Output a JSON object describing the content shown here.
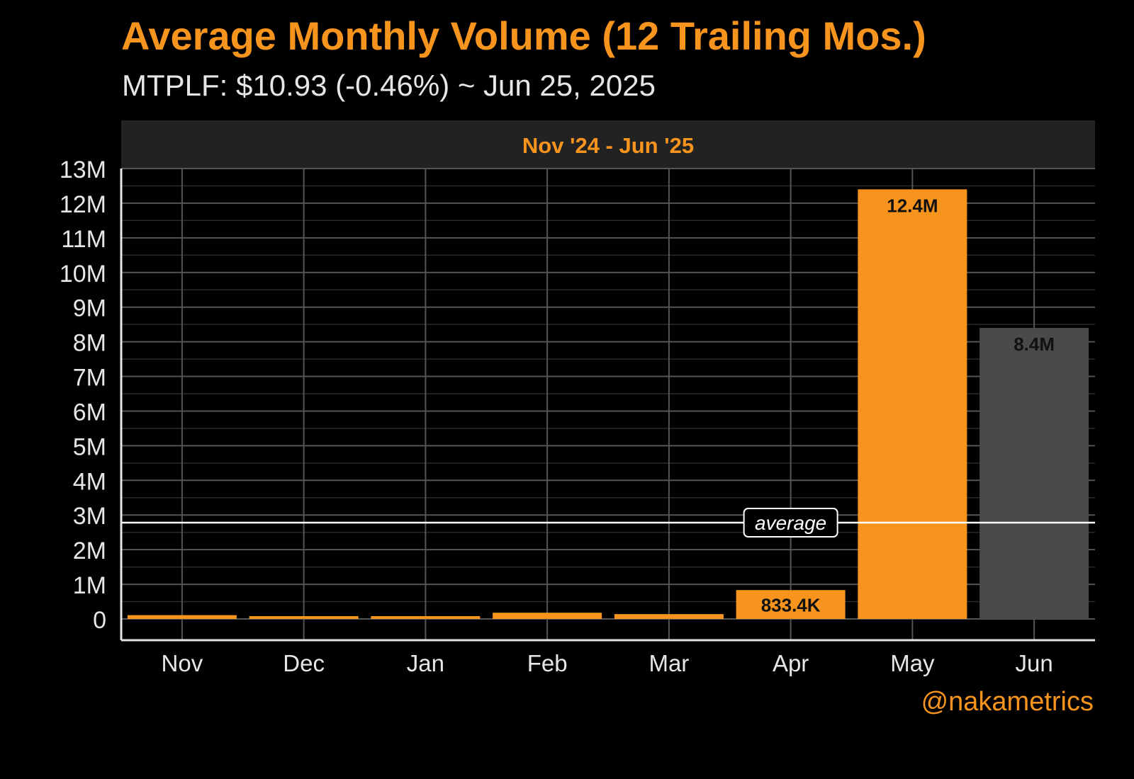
{
  "title": "Average Monthly Volume (12 Trailing Mos.)",
  "subtitle": "MTPLF: $10.93 (-0.46%) ~ Jun 25, 2025",
  "handle": "@nakametrics",
  "colors": {
    "background": "#000000",
    "accent": "#f7941d",
    "current_month_bar": "#4a4a4a",
    "panel_header": "#222222",
    "gridline": "#555555",
    "average_line": "#ffffff",
    "text": "#e6e6e6"
  },
  "chart_data": {
    "type": "bar",
    "panel_label": "Nov '24 - Jun '25",
    "categories": [
      "Nov",
      "Dec",
      "Jan",
      "Feb",
      "Mar",
      "Apr",
      "May",
      "Jun"
    ],
    "values": [
      110000,
      70000,
      60000,
      180000,
      140000,
      833400,
      12400000,
      8400000
    ],
    "data_labels": [
      "",
      "",
      "",
      "",
      "",
      "833.4K",
      "12.4M",
      "8.4M"
    ],
    "bar_colors": [
      "#f7941d",
      "#f7941d",
      "#f7941d",
      "#f7941d",
      "#f7941d",
      "#f7941d",
      "#f7941d",
      "#4a4a4a"
    ],
    "ylim": [
      0,
      13000000
    ],
    "yticks": [
      0,
      1000000,
      2000000,
      3000000,
      4000000,
      5000000,
      6000000,
      7000000,
      8000000,
      9000000,
      10000000,
      11000000,
      12000000,
      13000000
    ],
    "ytick_labels": [
      "0",
      "1M",
      "2M",
      "3M",
      "4M",
      "5M",
      "6M",
      "7M",
      "8M",
      "9M",
      "10M",
      "11M",
      "12M",
      "13M"
    ],
    "average": {
      "value": 2780000,
      "label": "average"
    },
    "grid": true,
    "xlabel": "",
    "ylabel": ""
  }
}
